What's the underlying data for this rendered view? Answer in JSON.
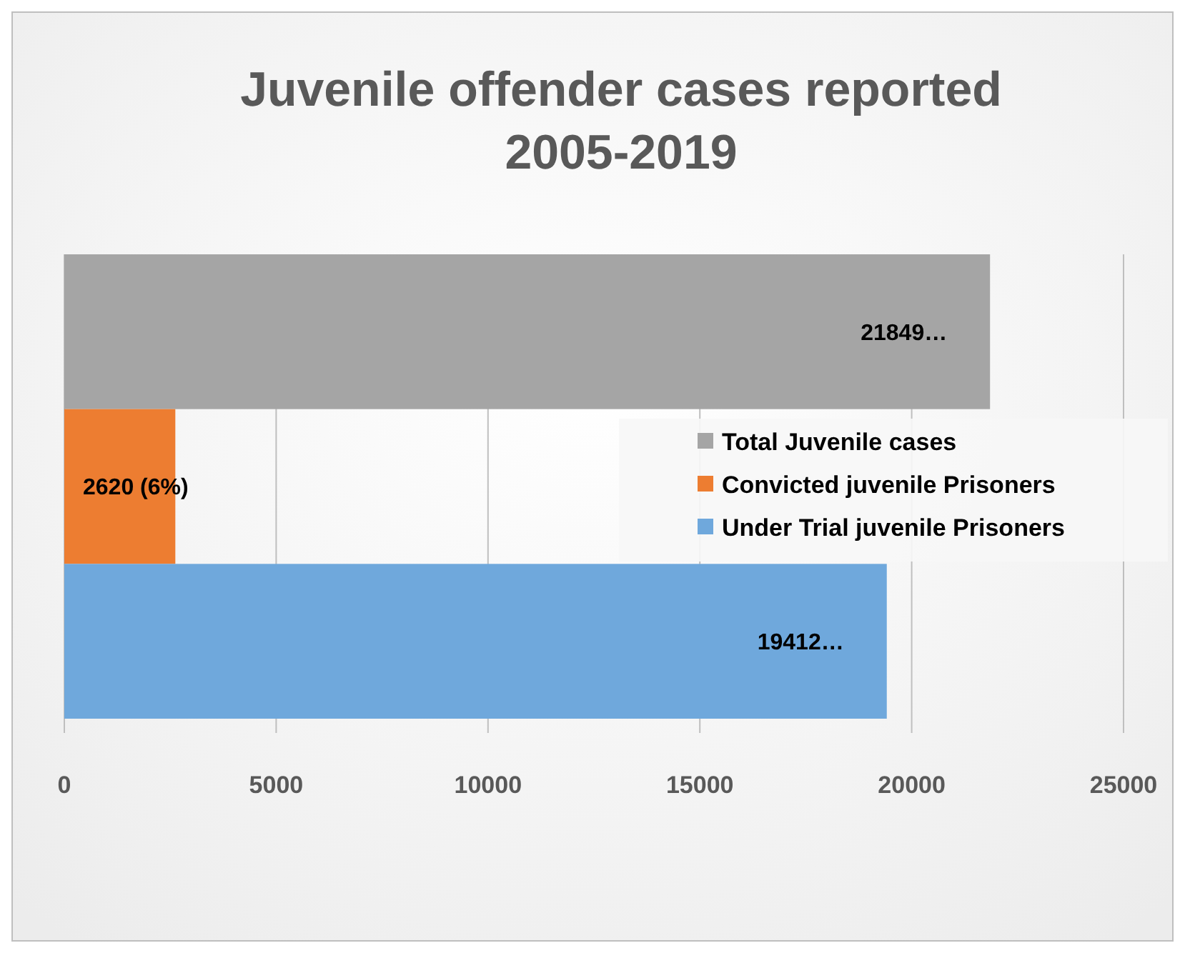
{
  "chart_data": {
    "type": "bar",
    "orientation": "horizontal",
    "title": "Juvenile offender cases reported 2005-2019",
    "categories": [
      null
    ],
    "series": [
      {
        "name": "Total Juvenile cases",
        "color": "#a5a5a5",
        "values": [
          21849
        ],
        "value_labels": [
          "21849…"
        ]
      },
      {
        "name": "Convicted juvenile Prisoners",
        "color": "#ed7d31",
        "values": [
          2620
        ],
        "value_labels": [
          "2620 (6%)"
        ]
      },
      {
        "name": "Under Trial juvenile Prisoners",
        "color": "#6fa8dc",
        "values": [
          19412
        ],
        "value_labels": [
          "19412…"
        ]
      }
    ],
    "xlim": [
      0,
      25000
    ],
    "xticks": [
      0,
      5000,
      10000,
      15000,
      20000,
      25000
    ],
    "grid": "x",
    "legend": "right"
  }
}
